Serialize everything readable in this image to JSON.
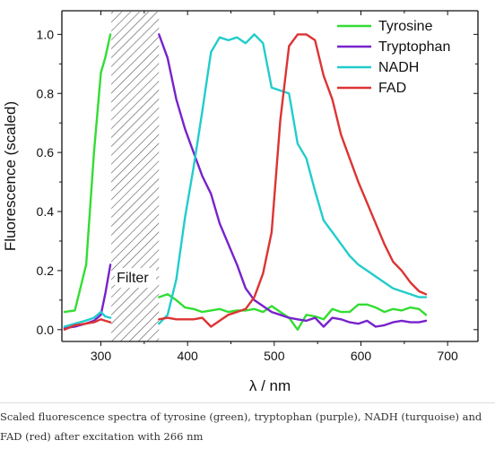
{
  "chart_data": {
    "type": "line",
    "xlabel": "λ / nm",
    "ylabel": "Fluorescence (scaled)",
    "xlim": [
      255,
      735
    ],
    "ylim": [
      -0.04,
      1.08
    ],
    "xticks": [
      300,
      400,
      500,
      600,
      700
    ],
    "yticks": [
      0.0,
      0.2,
      0.4,
      0.6,
      0.8,
      1.0
    ],
    "ytick_labels": [
      "0.0",
      "0.2",
      "0.4",
      "0.6",
      "0.8",
      "1.0"
    ],
    "grid": false,
    "legend_position": "top-right",
    "filter_region": [
      312,
      367
    ],
    "filter_label": "Filter",
    "series": [
      {
        "name": "Tyrosine",
        "color": "#33dd33",
        "segments": [
          {
            "x": [
              258,
              270,
              283,
              292,
              300,
              305,
              311
            ],
            "y": [
              0.06,
              0.065,
              0.22,
              0.6,
              0.87,
              0.92,
              1.0
            ]
          },
          {
            "x": [
              367,
              377,
              387,
              397,
              407,
              417,
              427,
              437,
              447,
              457,
              467,
              477,
              487,
              497,
              507,
              517,
              527,
              537,
              547,
              557,
              567,
              577,
              587,
              597,
              607,
              617,
              627,
              637,
              647,
              657,
              667,
              675
            ],
            "y": [
              0.11,
              0.12,
              0.1,
              0.075,
              0.07,
              0.06,
              0.065,
              0.07,
              0.06,
              0.065,
              0.065,
              0.07,
              0.06,
              0.08,
              0.06,
              0.04,
              0.0,
              0.05,
              0.045,
              0.035,
              0.07,
              0.06,
              0.06,
              0.085,
              0.085,
              0.075,
              0.06,
              0.07,
              0.065,
              0.075,
              0.07,
              0.05
            ]
          }
        ]
      },
      {
        "name": "Tryptophan",
        "color": "#7722cc",
        "segments": [
          {
            "x": [
              258,
              270,
              282,
              292,
              300,
              305,
              311
            ],
            "y": [
              0.005,
              0.01,
              0.02,
              0.03,
              0.05,
              0.12,
              0.22
            ]
          },
          {
            "x": [
              367,
              377,
              387,
              397,
              407,
              417,
              427,
              437,
              447,
              457,
              467,
              477,
              487,
              497,
              507,
              517,
              527,
              537,
              547,
              557,
              567,
              577,
              587,
              597,
              607,
              617,
              627,
              637,
              647,
              657,
              667,
              675
            ],
            "y": [
              1.0,
              0.92,
              0.78,
              0.68,
              0.6,
              0.52,
              0.46,
              0.36,
              0.29,
              0.22,
              0.14,
              0.1,
              0.08,
              0.06,
              0.05,
              0.04,
              0.035,
              0.03,
              0.04,
              0.01,
              0.04,
              0.035,
              0.025,
              0.02,
              0.03,
              0.01,
              0.015,
              0.025,
              0.03,
              0.025,
              0.025,
              0.03
            ]
          }
        ]
      },
      {
        "name": "NADH",
        "color": "#22cccc",
        "segments": [
          {
            "x": [
              258,
              270,
              282,
              292,
              300,
              305,
              311
            ],
            "y": [
              0.01,
              0.02,
              0.03,
              0.04,
              0.06,
              0.045,
              0.04
            ]
          },
          {
            "x": [
              367,
              377,
              387,
              397,
              407,
              417,
              427,
              437,
              447,
              457,
              467,
              477,
              487,
              497,
              507,
              517,
              527,
              537,
              547,
              557,
              567,
              577,
              587,
              597,
              607,
              617,
              627,
              637,
              647,
              657,
              667,
              675
            ],
            "y": [
              0.02,
              0.05,
              0.17,
              0.38,
              0.55,
              0.74,
              0.94,
              0.99,
              0.98,
              0.99,
              0.97,
              1.0,
              0.97,
              0.82,
              0.81,
              0.8,
              0.63,
              0.58,
              0.47,
              0.37,
              0.33,
              0.29,
              0.25,
              0.22,
              0.2,
              0.18,
              0.16,
              0.14,
              0.13,
              0.12,
              0.11,
              0.11
            ]
          }
        ]
      },
      {
        "name": "FAD",
        "color": "#dd3333",
        "segments": [
          {
            "x": [
              258,
              270,
              282,
              292,
              300,
              305,
              311
            ],
            "y": [
              0.0,
              0.015,
              0.02,
              0.025,
              0.035,
              0.03,
              0.025
            ]
          },
          {
            "x": [
              367,
              377,
              387,
              397,
              407,
              417,
              427,
              437,
              447,
              457,
              467,
              477,
              487,
              497,
              507,
              517,
              527,
              537,
              547,
              557,
              567,
              577,
              587,
              597,
              607,
              617,
              627,
              637,
              647,
              657,
              667,
              675
            ],
            "y": [
              0.035,
              0.04,
              0.035,
              0.035,
              0.035,
              0.04,
              0.01,
              0.03,
              0.05,
              0.06,
              0.07,
              0.11,
              0.19,
              0.33,
              0.71,
              0.96,
              1.0,
              1.0,
              0.98,
              0.86,
              0.78,
              0.66,
              0.58,
              0.5,
              0.43,
              0.36,
              0.29,
              0.23,
              0.2,
              0.16,
              0.13,
              0.12
            ]
          }
        ]
      }
    ]
  },
  "caption": "Scaled fluorescence spectra of tyrosine (green), tryptophan (purple), NADH (turquoise) and FAD (red) after excitation with 266 nm"
}
